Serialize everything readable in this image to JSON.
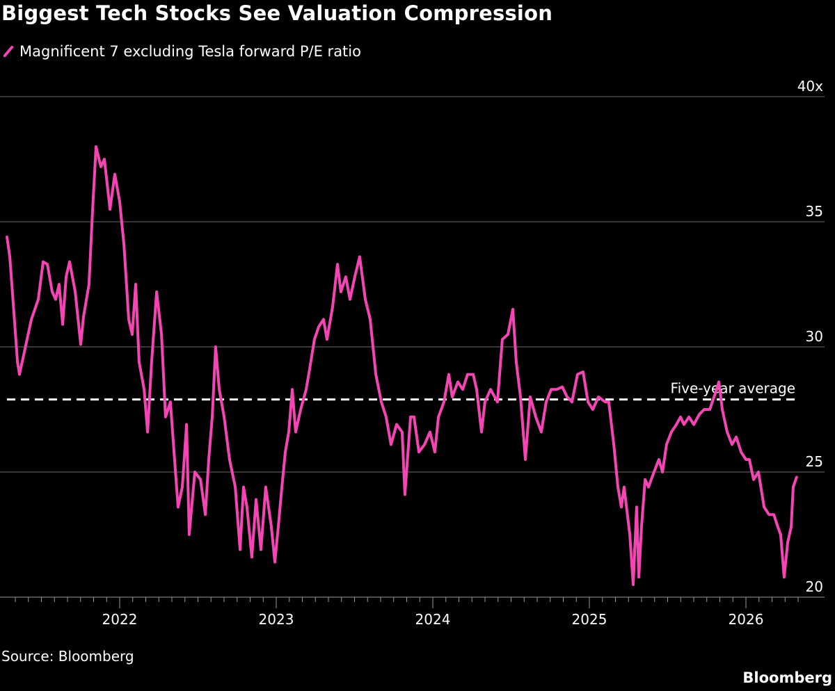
{
  "title": "Biggest Tech Stocks See Valuation Compression",
  "source": "Source: Bloomberg",
  "logo": "Bloomberg",
  "chart_data": {
    "type": "line",
    "title": "Biggest Tech Stocks See Valuation Compression",
    "legend": {
      "position": "top-left",
      "entries": [
        "Magnificent 7 excluding Tesla forward P/E ratio"
      ]
    },
    "xlabel": "",
    "ylabel": "",
    "x_ticks": [
      "2022",
      "2023",
      "2024",
      "2025",
      "2026"
    ],
    "y_ticks": [
      "20",
      "25",
      "30",
      "35",
      "40x"
    ],
    "ylim": [
      20,
      40
    ],
    "xlim": [
      2021.28,
      2026.33
    ],
    "grid": "horizontal",
    "colors": {
      "series": "#f544b4",
      "average": "#ffffff",
      "grid": "#6e6e6e"
    },
    "reference_line": {
      "label": "Five-year average",
      "value": 27.9,
      "style": "dashed"
    },
    "series": [
      {
        "name": "Magnificent 7 excluding Tesla forward P/E ratio",
        "x": [
          2021.28,
          2021.298,
          2021.324,
          2021.347,
          2021.36,
          2021.391,
          2021.436,
          2021.48,
          2021.511,
          2021.538,
          2021.569,
          2021.591,
          2021.613,
          2021.636,
          2021.658,
          2021.68,
          2021.716,
          2021.751,
          2021.769,
          2021.804,
          2021.827,
          2021.849,
          2021.88,
          2021.902,
          2021.938,
          2021.969,
          2022.0,
          2022.027,
          2022.058,
          2022.08,
          2022.102,
          2022.124,
          2022.156,
          2022.178,
          2022.204,
          2022.236,
          2022.267,
          2022.293,
          2022.324,
          2022.347,
          2022.373,
          2022.4,
          2022.427,
          2022.444,
          2022.48,
          2022.516,
          2022.547,
          2022.569,
          2022.591,
          2022.613,
          2022.636,
          2022.667,
          2022.702,
          2022.738,
          2022.769,
          2022.791,
          2022.813,
          2022.844,
          2022.871,
          2022.902,
          2022.933,
          2022.969,
          2022.991,
          2023.013,
          2023.036,
          2023.058,
          2023.08,
          2023.102,
          2023.124,
          2023.156,
          2023.191,
          2023.213,
          2023.244,
          2023.271,
          2023.302,
          2023.324,
          2023.36,
          2023.391,
          2023.413,
          2023.444,
          2023.471,
          2023.502,
          2023.533,
          2023.569,
          2023.6,
          2023.636,
          2023.671,
          2023.702,
          2023.733,
          2023.769,
          2023.804,
          2023.822,
          2023.858,
          2023.88,
          2023.911,
          2023.947,
          2023.982,
          2024.013,
          2024.036,
          2024.071,
          2024.102,
          2024.124,
          2024.16,
          2024.191,
          2024.222,
          2024.258,
          2024.28,
          2024.311,
          2024.333,
          2024.369,
          2024.413,
          2024.444,
          2024.48,
          2024.511,
          2024.533,
          2024.56,
          2024.591,
          2024.622,
          2024.658,
          2024.693,
          2024.724,
          2024.756,
          2024.791,
          2024.827,
          2024.858,
          2024.889,
          2024.924,
          2024.96,
          2024.991,
          2025.022,
          2025.058,
          2025.102,
          2025.124,
          2025.156,
          2025.182,
          2025.204,
          2025.222,
          2025.258,
          2025.28,
          2025.302,
          2025.316,
          2025.333,
          2025.356,
          2025.378,
          2025.413,
          2025.444,
          2025.467,
          2025.493,
          2025.524,
          2025.556,
          2025.582,
          2025.604,
          2025.636,
          2025.667,
          2025.702,
          2025.733,
          2025.769,
          2025.813,
          2025.827,
          2025.849,
          2025.88,
          2025.911,
          2025.938,
          2025.969,
          2026.0,
          2026.022,
          2026.049,
          2026.08,
          2026.116,
          2026.147,
          2026.178,
          2026.204,
          2026.222,
          2026.244,
          2026.267,
          2026.289,
          2026.302,
          2026.324
        ],
        "y": [
          34.4,
          33.6,
          31.4,
          29.4,
          28.9,
          29.8,
          31.1,
          31.9,
          33.4,
          33.3,
          32.2,
          31.9,
          32.5,
          30.9,
          32.8,
          33.4,
          32.2,
          30.1,
          31.2,
          32.5,
          35.5,
          38.0,
          37.2,
          37.5,
          35.5,
          36.9,
          35.8,
          34.1,
          31.1,
          30.5,
          32.5,
          29.4,
          28.3,
          26.6,
          29.4,
          32.2,
          30.5,
          27.2,
          27.8,
          25.8,
          23.6,
          24.4,
          26.9,
          22.5,
          25.0,
          24.7,
          23.3,
          25.5,
          27.2,
          30.0,
          28.3,
          27.2,
          25.5,
          24.4,
          21.9,
          24.4,
          23.6,
          21.6,
          23.9,
          21.9,
          24.4,
          22.8,
          21.4,
          22.8,
          24.4,
          25.8,
          26.6,
          28.3,
          26.6,
          27.5,
          28.3,
          29.1,
          30.3,
          30.8,
          31.1,
          30.3,
          31.6,
          33.3,
          32.2,
          32.8,
          31.9,
          32.8,
          33.6,
          31.9,
          31.1,
          28.9,
          27.8,
          27.2,
          26.1,
          26.9,
          26.6,
          24.1,
          27.2,
          27.2,
          25.8,
          26.1,
          26.6,
          25.8,
          27.2,
          27.8,
          28.9,
          28.0,
          28.6,
          28.3,
          28.9,
          28.9,
          28.3,
          26.6,
          27.8,
          28.3,
          27.8,
          30.3,
          30.5,
          31.5,
          29.4,
          28.0,
          25.5,
          28.0,
          27.2,
          26.6,
          27.8,
          28.3,
          28.3,
          28.4,
          28.0,
          27.8,
          28.9,
          29.0,
          27.8,
          27.5,
          28.0,
          27.8,
          27.8,
          26.1,
          24.4,
          23.6,
          24.4,
          22.5,
          20.5,
          23.6,
          20.8,
          22.8,
          24.7,
          24.4,
          25.0,
          25.5,
          25.0,
          26.1,
          26.6,
          26.9,
          27.2,
          26.9,
          27.2,
          26.9,
          27.3,
          27.5,
          27.5,
          28.3,
          28.6,
          27.5,
          26.6,
          26.1,
          26.4,
          25.8,
          25.5,
          25.5,
          24.7,
          25.0,
          23.6,
          23.3,
          23.3,
          22.8,
          22.5,
          20.8,
          22.2,
          22.8,
          24.4,
          24.8
        ]
      }
    ]
  }
}
